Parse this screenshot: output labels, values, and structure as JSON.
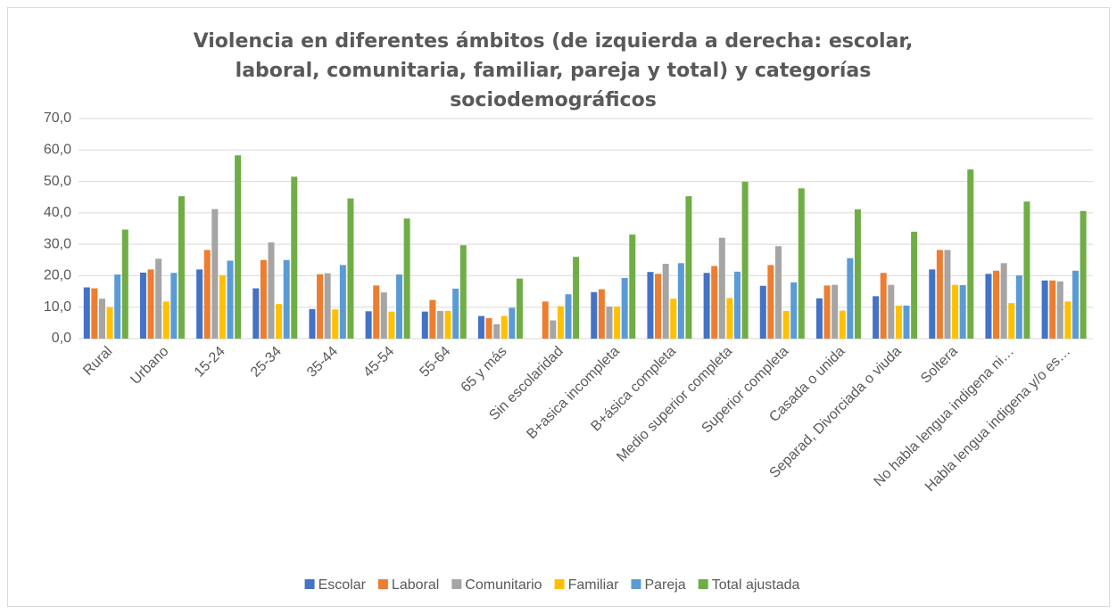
{
  "chart_data": {
    "type": "bar",
    "title": "Violencia en diferentes ámbitos (de izquierda a derecha: escolar, laboral, comunitaria, familiar, pareja y total) y categorías sociodemográficos",
    "categories": [
      "Rural",
      "Urbano",
      "15-24",
      "25-34",
      "35-44",
      "45-54",
      "55-64",
      "65 y más",
      "Sin escolaridad",
      "B+asica incompleta",
      "B+ásica completa",
      "Medio superior completa",
      "Superior completa",
      "Casada o unida",
      "Separad, Divorciada o viuda",
      "Soltera",
      "No habla lengua indigena ni…",
      "Habla lengua indigena y/o es…"
    ],
    "series": [
      {
        "name": "Escolar",
        "color": "#4472c4",
        "values": [
          16.3,
          21.0,
          22.0,
          16.0,
          9.4,
          8.7,
          8.6,
          7.2,
          null,
          14.8,
          21.2,
          20.9,
          16.8,
          12.8,
          13.5,
          22.0,
          20.6,
          18.5
        ]
      },
      {
        "name": "Laboral",
        "color": "#ed7d31",
        "values": [
          16.0,
          22.0,
          28.2,
          25.0,
          20.5,
          16.9,
          12.3,
          6.5,
          11.8,
          15.7,
          20.6,
          23.1,
          23.4,
          16.9,
          20.9,
          28.2,
          21.6,
          18.5
        ]
      },
      {
        "name": "Comunitario",
        "color": "#a5a5a5",
        "values": [
          12.7,
          25.4,
          41.2,
          30.6,
          20.8,
          14.7,
          8.8,
          4.6,
          5.8,
          10.2,
          23.8,
          32.1,
          29.4,
          17.1,
          17.1,
          28.2,
          24.0,
          18.2
        ]
      },
      {
        "name": "Familiar",
        "color": "#ffc000",
        "values": [
          10.0,
          11.8,
          20.2,
          11.0,
          9.3,
          8.6,
          8.8,
          7.2,
          10.3,
          10.2,
          12.7,
          12.9,
          8.8,
          8.9,
          10.5,
          17.1,
          11.3,
          11.8
        ]
      },
      {
        "name": "Pareja",
        "color": "#5b9bd5",
        "values": [
          20.4,
          20.9,
          24.8,
          25.0,
          23.4,
          20.4,
          15.9,
          9.8,
          14.1,
          19.3,
          24.0,
          21.3,
          17.9,
          25.6,
          10.5,
          17.0,
          20.1,
          21.6
        ]
      },
      {
        "name": "Total ajustada",
        "color": "#70ad47",
        "values": [
          34.7,
          45.3,
          58.3,
          51.5,
          44.6,
          38.2,
          29.7,
          19.1,
          26.0,
          33.1,
          45.3,
          49.9,
          47.8,
          41.1,
          34.0,
          53.8,
          43.6,
          40.6
        ]
      }
    ],
    "ylim": [
      0,
      70
    ],
    "yticks": [
      {
        "value": 0,
        "label": "0,0"
      },
      {
        "value": 10,
        "label": "10,0"
      },
      {
        "value": 20,
        "label": "20,0"
      },
      {
        "value": 30,
        "label": "30,0"
      },
      {
        "value": 40,
        "label": "40,0"
      },
      {
        "value": 50,
        "label": "50,0"
      },
      {
        "value": 60,
        "label": "60,0"
      },
      {
        "value": 70,
        "label": "70,0"
      }
    ],
    "grid": true,
    "legend": "bottom"
  }
}
